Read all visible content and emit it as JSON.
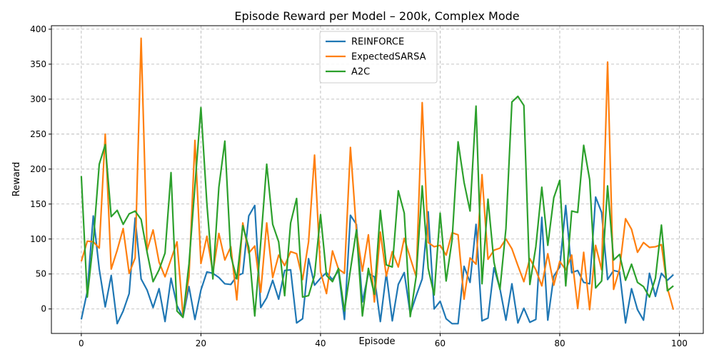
{
  "chart_data": {
    "type": "line",
    "title": "Episode Reward per Model – 200k, Complex Mode",
    "xlabel": "Episode",
    "ylabel": "Reward",
    "xlim": [
      -5,
      104
    ],
    "ylim": [
      -35,
      405
    ],
    "xticks": [
      0,
      20,
      40,
      60,
      80,
      100
    ],
    "yticks": [
      0,
      50,
      100,
      150,
      200,
      250,
      300,
      350,
      400
    ],
    "grid": true,
    "legend_position": "top-center",
    "series": [
      {
        "name": "REINFORCE",
        "color": "#1f77b4",
        "values": [
          -15,
          25,
          133,
          57,
          3,
          48,
          -21,
          -3,
          22,
          130,
          43,
          27,
          2,
          29,
          -18,
          44,
          5,
          -12,
          32,
          -15,
          27,
          53,
          51,
          45,
          36,
          35,
          47,
          51,
          133,
          148,
          2,
          16,
          41,
          14,
          55,
          56,
          -20,
          -14,
          72,
          34,
          44,
          52,
          42,
          55,
          -15,
          134,
          121,
          10,
          51,
          46,
          -18,
          51,
          -17,
          35,
          52,
          -7,
          19,
          43,
          139,
          0,
          11,
          -14,
          -21,
          -21,
          61,
          38,
          121,
          -17,
          -13,
          59,
          29,
          -16,
          36,
          -20,
          1,
          -19,
          -15,
          131,
          -16,
          47,
          60,
          148,
          52,
          55,
          38,
          36,
          160,
          138,
          42,
          55,
          53,
          -20,
          29,
          -1,
          -16,
          51,
          18,
          51,
          41,
          49
        ]
      },
      {
        "name": "ExpectedSARSA",
        "color": "#ff7f0e",
        "values": [
          68,
          97,
          96,
          87,
          250,
          57,
          84,
          115,
          51,
          73,
          387,
          84,
          113,
          67,
          46,
          71,
          96,
          -9,
          46,
          241,
          65,
          104,
          52,
          108,
          70,
          89,
          13,
          123,
          80,
          90,
          24,
          123,
          45,
          77,
          62,
          82,
          79,
          42,
          96,
          220,
          53,
          22,
          83,
          57,
          51,
          231,
          112,
          54,
          106,
          10,
          110,
          47,
          82,
          60,
          101,
          73,
          46,
          295,
          95,
          89,
          91,
          77,
          109,
          106,
          14,
          73,
          64,
          192,
          71,
          84,
          87,
          100,
          86,
          62,
          39,
          72,
          56,
          33,
          79,
          34,
          68,
          56,
          77,
          1,
          81,
          -1,
          91,
          56,
          353,
          28,
          57,
          129,
          114,
          81,
          95,
          88,
          89,
          92,
          30,
          -1
        ]
      },
      {
        "name": "A2C",
        "color": "#2ca02c",
        "values": [
          190,
          17,
          96,
          207,
          235,
          132,
          141,
          121,
          136,
          140,
          128,
          81,
          39,
          56,
          80,
          195,
          -3,
          -12,
          64,
          176,
          288,
          150,
          43,
          174,
          240,
          76,
          43,
          119,
          88,
          -10,
          95,
          207,
          121,
          96,
          19,
          123,
          158,
          17,
          19,
          48,
          135,
          48,
          39,
          58,
          -3,
          56,
          113,
          -10,
          58,
          21,
          141,
          63,
          60,
          169,
          137,
          -11,
          47,
          176,
          58,
          20,
          137,
          40,
          99,
          239,
          181,
          140,
          290,
          36,
          157,
          67,
          28,
          115,
          296,
          304,
          291,
          35,
          89,
          174,
          91,
          159,
          184,
          33,
          140,
          138,
          234,
          185,
          30,
          40,
          176,
          70,
          78,
          41,
          64,
          38,
          32,
          17,
          44,
          120,
          26,
          33
        ]
      }
    ]
  }
}
